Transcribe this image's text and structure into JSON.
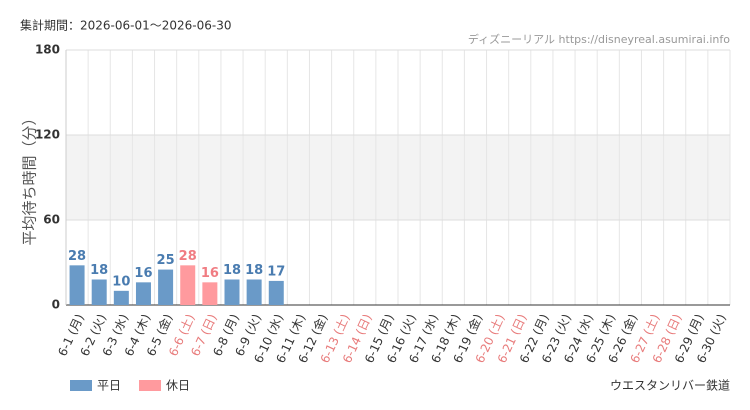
{
  "chart_data": {
    "type": "bar",
    "title": "集計期間：2026-06-01～2026-06-30",
    "source": "ディズニーリアル https://disneyreal.asumirai.info",
    "attraction": "ウエスタンリバー鉄道",
    "y_label": "平均待ち時間（分）",
    "categories": [
      "6-1 (月)",
      "6-2 (火)",
      "6-3 (水)",
      "6-4 (木)",
      "6-5 (金)",
      "6-6 (土)",
      "6-7 (日)",
      "6-8 (月)",
      "6-9 (火)",
      "6-10 (水)",
      "6-11 (木)",
      "6-12 (金)",
      "6-13 (土)",
      "6-14 (日)",
      "6-15 (月)",
      "6-16 (火)",
      "6-17 (水)",
      "6-18 (木)",
      "6-19 (金)",
      "6-20 (土)",
      "6-21 (日)",
      "6-22 (月)",
      "6-23 (火)",
      "6-24 (水)",
      "6-25 (木)",
      "6-26 (金)",
      "6-27 (土)",
      "6-28 (日)",
      "6-29 (月)",
      "6-30 (火)"
    ],
    "category_label_colors": [
      "#333",
      "#333",
      "#333",
      "#333",
      "#333",
      "#e87b7b",
      "#e87b7b",
      "#333",
      "#333",
      "#333",
      "#333",
      "#333",
      "#e87b7b",
      "#e87b7b",
      "#333",
      "#333",
      "#333",
      "#333",
      "#333",
      "#e87b7b",
      "#e87b7b",
      "#333",
      "#333",
      "#333",
      "#333",
      "#333",
      "#e87b7b",
      "#e87b7b",
      "#333",
      "#333"
    ],
    "series": [
      {
        "name": "平日",
        "color": "#6a9ac8",
        "label_color": "#4a7cb0",
        "values": [
          28,
          18,
          10,
          16,
          25,
          null,
          null,
          18,
          18,
          17,
          null,
          null,
          null,
          null,
          null,
          null,
          null,
          null,
          null,
          null,
          null,
          null,
          null,
          null,
          null,
          null,
          null,
          null,
          null,
          null
        ]
      },
      {
        "name": "休日",
        "color": "#ff9a9e",
        "label_color": "#f07c82",
        "values": [
          null,
          null,
          null,
          null,
          null,
          28,
          16,
          null,
          null,
          null,
          null,
          null,
          null,
          null,
          null,
          null,
          null,
          null,
          null,
          null,
          null,
          null,
          null,
          null,
          null,
          null,
          null,
          null,
          null,
          null
        ]
      }
    ],
    "ylim": [
      0,
      180
    ],
    "yticks": [
      0,
      60,
      120,
      180
    ],
    "grid": true,
    "legend": "bottom-left"
  }
}
